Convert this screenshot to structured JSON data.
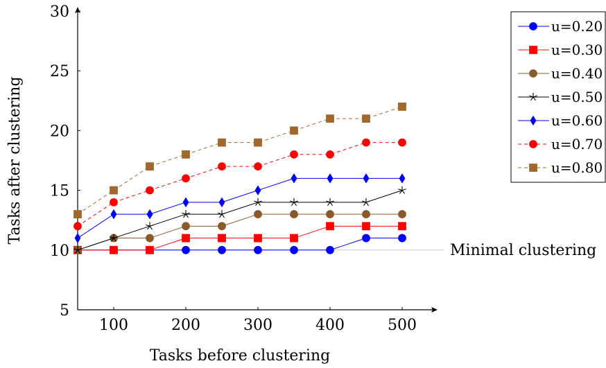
{
  "chart_data": {
    "type": "line",
    "xlabel": "Tasks before clustering",
    "ylabel": "Tasks after clustering",
    "xlim": [
      50,
      500
    ],
    "ylim": [
      5,
      30
    ],
    "xticks": [
      100,
      200,
      300,
      400,
      500
    ],
    "yticks": [
      5,
      10,
      15,
      20,
      25,
      30
    ],
    "x": [
      50,
      100,
      150,
      200,
      250,
      300,
      350,
      400,
      450,
      500
    ],
    "grid": false,
    "legend_position": "top-right",
    "series": [
      {
        "name": "u=0.20",
        "color": "#0000ff",
        "marker": "circle",
        "dashed": false,
        "values": [
          10,
          10,
          10,
          10,
          10,
          10,
          10,
          10,
          11,
          11
        ]
      },
      {
        "name": "u=0.30",
        "color": "#ff0000",
        "marker": "square",
        "dashed": false,
        "values": [
          10,
          10,
          10,
          11,
          11,
          11,
          11,
          12,
          12,
          12
        ]
      },
      {
        "name": "u=0.40",
        "color": "#8b5a2b",
        "marker": "circle",
        "dashed": false,
        "values": [
          10,
          11,
          11,
          12,
          12,
          13,
          13,
          13,
          13,
          13
        ]
      },
      {
        "name": "u=0.50",
        "color": "#000000",
        "marker": "star",
        "dashed": false,
        "values": [
          10,
          11,
          12,
          13,
          13,
          14,
          14,
          14,
          14,
          15
        ]
      },
      {
        "name": "u=0.60",
        "color": "#0000ff",
        "marker": "diamond",
        "dashed": false,
        "values": [
          11,
          13,
          13,
          14,
          14,
          15,
          16,
          16,
          16,
          16
        ]
      },
      {
        "name": "u=0.70",
        "color": "#ff0000",
        "marker": "circle",
        "dashed": true,
        "values": [
          12,
          14,
          15,
          16,
          17,
          17,
          18,
          18,
          19,
          19
        ]
      },
      {
        "name": "u=0.80",
        "color": "#a0682c",
        "marker": "square",
        "dashed": true,
        "values": [
          13,
          15,
          17,
          18,
          19,
          19,
          20,
          21,
          21,
          22
        ]
      }
    ],
    "reference_line": {
      "y": 10,
      "label": "Minimal clustering",
      "color": "#c8c8c8"
    }
  }
}
